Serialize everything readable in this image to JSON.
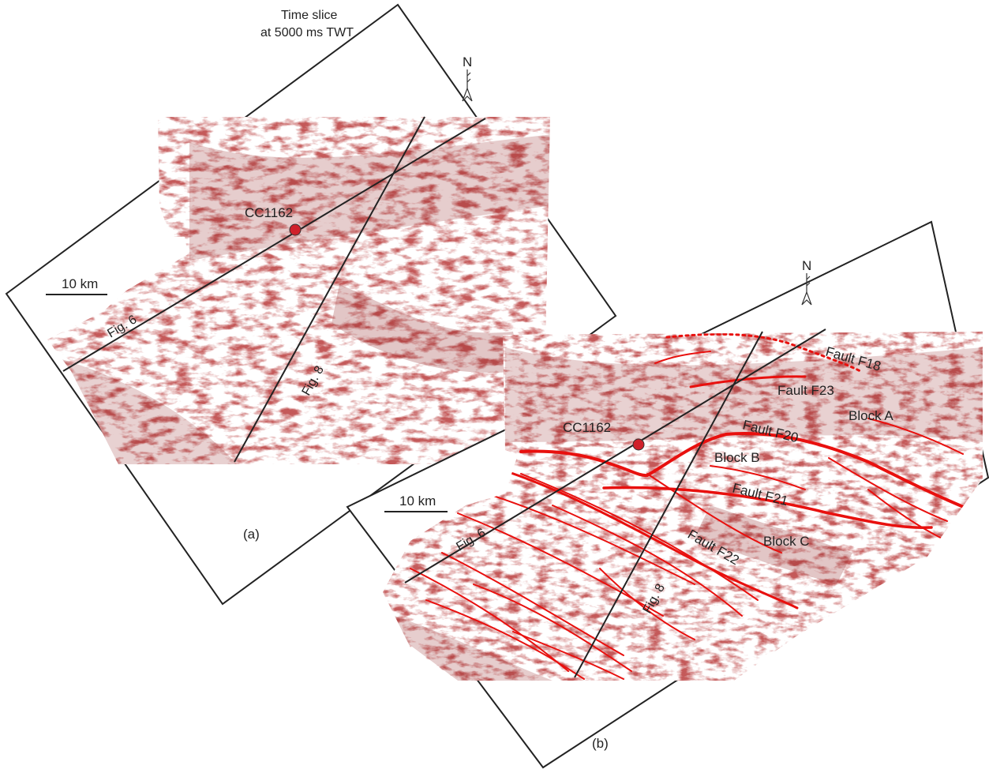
{
  "title": {
    "line1": "Time  slice",
    "line2": "at  5000 ms  TWT"
  },
  "panel_a": {
    "label": "(a)",
    "north": "N",
    "scale": "10 km",
    "well": "CC1162",
    "line_fig6": "Fig. 6",
    "line_fig8": "Fig. 8"
  },
  "panel_b": {
    "label": "(b)",
    "north": "N",
    "scale": "10 km",
    "well": "CC1162",
    "line_fig6": "Fig. 6",
    "line_fig8": "Fig. 8",
    "faults": {
      "f18": "Fault F18",
      "f23": "Fault F23",
      "f20": "Fault F20",
      "f21": "Fault F21",
      "f22": "Fault F22"
    },
    "blocks": {
      "a": "Block A",
      "b": "Block B",
      "c": "Block C"
    }
  },
  "colors": {
    "seismic": "#8b1a1a",
    "fault": "#e8100e",
    "well": "#d0202a",
    "frame": "#222222"
  }
}
